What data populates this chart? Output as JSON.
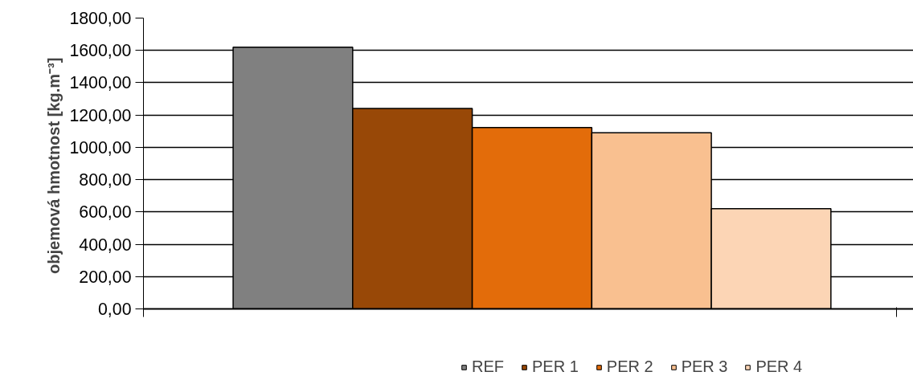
{
  "chart_data": {
    "type": "bar",
    "ylabel": "objemová hmotnost  [kg.m⁻³]",
    "categories": [
      null
    ],
    "series": [
      {
        "name": "REF",
        "color": "#808080",
        "values": [
          1620
        ]
      },
      {
        "name": "PER 1",
        "color": "#984807",
        "values": [
          1240
        ]
      },
      {
        "name": "PER 2",
        "color": "#e36c0a",
        "values": [
          1122
        ]
      },
      {
        "name": "PER 3",
        "color": "#f9c090",
        "values": [
          1090
        ]
      },
      {
        "name": "PER 4",
        "color": "#fcd5b5",
        "values": [
          620
        ]
      }
    ],
    "ylim": [
      0,
      1800
    ],
    "yticks": [
      {
        "value": 0,
        "label": "0,00"
      },
      {
        "value": 200,
        "label": "200,00"
      },
      {
        "value": 400,
        "label": "400,00"
      },
      {
        "value": 600,
        "label": "600,00"
      },
      {
        "value": 800,
        "label": "800,00"
      },
      {
        "value": 1000,
        "label": "1000,00"
      },
      {
        "value": 1200,
        "label": "1200,00"
      },
      {
        "value": 1400,
        "label": "1400,00"
      },
      {
        "value": 1600,
        "label": "1600,00"
      },
      {
        "value": 1800,
        "label": "1800,00"
      }
    ],
    "grid": "y",
    "legend": "bottom"
  }
}
